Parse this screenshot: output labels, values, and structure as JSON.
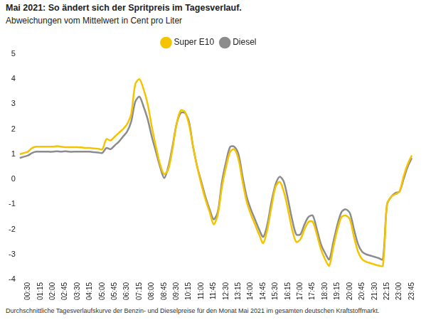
{
  "chart_data": {
    "type": "line",
    "title": "Mai 2021:  So ändert sich der Spritpreis im Tagesverlauf.",
    "subtitle": "Abweichungen vom Mittelwert in Cent pro Liter",
    "caption": "Durchschnittliche Tagesverlaufskurve der Benzin- und Dieselpreise für den Monat Mai 2021 im gesamten deutschen Kraftstoffmarkt.",
    "categories": [
      null,
      null,
      "00:30",
      null,
      null,
      "01:15",
      null,
      null,
      "02:00",
      null,
      null,
      "02:45",
      null,
      null,
      "03:30",
      null,
      null,
      "04:15",
      null,
      null,
      "05:00",
      null,
      null,
      "05:45",
      null,
      null,
      "06:30",
      null,
      null,
      "07:15",
      null,
      null,
      "08:00",
      null,
      null,
      "08:45",
      null,
      null,
      "09:30",
      null,
      null,
      "10:15",
      null,
      null,
      "11:00",
      null,
      null,
      "11:45",
      null,
      null,
      "12:30",
      null,
      null,
      "13:15",
      null,
      null,
      "14:00",
      null,
      null,
      "14:45",
      null,
      null,
      "15:30",
      null,
      null,
      "16:15",
      null,
      null,
      "17:00",
      null,
      null,
      "17:45",
      null,
      null,
      "18:30",
      null,
      null,
      "19:15",
      null,
      null,
      "20:00",
      null,
      null,
      "20:45",
      null,
      null,
      "21:30",
      null,
      null,
      "22:15",
      null,
      null,
      "23:00",
      null,
      null,
      "23:45"
    ],
    "series": [
      {
        "name": "Super E10",
        "color": "#f5c400",
        "values": [
          1.0,
          1.05,
          1.1,
          1.25,
          1.3,
          1.3,
          1.3,
          1.3,
          1.3,
          1.32,
          1.3,
          1.28,
          1.28,
          1.28,
          1.28,
          1.27,
          1.25,
          1.25,
          1.23,
          1.22,
          1.2,
          1.6,
          1.55,
          1.7,
          1.85,
          2.0,
          2.2,
          2.6,
          3.8,
          4.0,
          3.6,
          3.0,
          2.1,
          1.3,
          0.6,
          0.2,
          0.4,
          1.2,
          2.2,
          2.75,
          2.7,
          2.2,
          1.3,
          0.5,
          -0.2,
          -0.8,
          -1.3,
          -1.8,
          -1.4,
          -0.3,
          0.5,
          1.1,
          1.2,
          0.8,
          -0.1,
          -0.9,
          -1.4,
          -1.8,
          -2.2,
          -2.55,
          -2.0,
          -1.1,
          -0.3,
          -0.1,
          -0.5,
          -1.2,
          -2.0,
          -2.5,
          -2.4,
          -2.0,
          -1.7,
          -1.7,
          -2.2,
          -2.8,
          -3.2,
          -3.45,
          -2.7,
          -2.0,
          -1.5,
          -1.45,
          -1.6,
          -2.3,
          -2.9,
          -3.2,
          -3.3,
          -3.35,
          -3.4,
          -3.45,
          -3.45,
          -1.0,
          -0.7,
          -0.6,
          -0.5,
          0.1,
          0.6,
          0.95
        ]
      },
      {
        "name": "Diesel",
        "color": "#8c8c8c",
        "values": [
          0.85,
          0.9,
          0.95,
          1.05,
          1.1,
          1.1,
          1.1,
          1.1,
          1.1,
          1.12,
          1.1,
          1.12,
          1.1,
          1.1,
          1.1,
          1.1,
          1.1,
          1.1,
          1.08,
          1.07,
          1.05,
          1.25,
          1.2,
          1.35,
          1.5,
          1.7,
          1.9,
          2.3,
          3.1,
          3.3,
          2.9,
          2.4,
          1.7,
          1.1,
          0.5,
          0.05,
          0.5,
          1.3,
          2.2,
          2.65,
          2.65,
          2.3,
          1.3,
          0.5,
          -0.1,
          -0.7,
          -1.2,
          -1.6,
          -1.3,
          -0.1,
          0.7,
          1.3,
          1.3,
          1.0,
          0.1,
          -0.7,
          -1.2,
          -1.6,
          -2.0,
          -2.3,
          -1.8,
          -0.9,
          -0.2,
          0.1,
          -0.1,
          -0.8,
          -1.6,
          -2.2,
          -2.2,
          -1.8,
          -1.5,
          -1.45,
          -2.0,
          -2.6,
          -2.95,
          -3.2,
          -2.5,
          -1.8,
          -1.3,
          -1.2,
          -1.35,
          -2.0,
          -2.6,
          -2.9,
          -3.0,
          -3.05,
          -3.1,
          -3.15,
          -3.2,
          -1.0,
          -0.7,
          -0.55,
          -0.5,
          0.0,
          0.5,
          0.85
        ]
      }
    ],
    "ylim": [
      -4,
      5
    ],
    "yticks": [
      -4,
      -3,
      -2,
      -1,
      0,
      1,
      2,
      3,
      4,
      5
    ],
    "grid": false,
    "legend": "top"
  }
}
